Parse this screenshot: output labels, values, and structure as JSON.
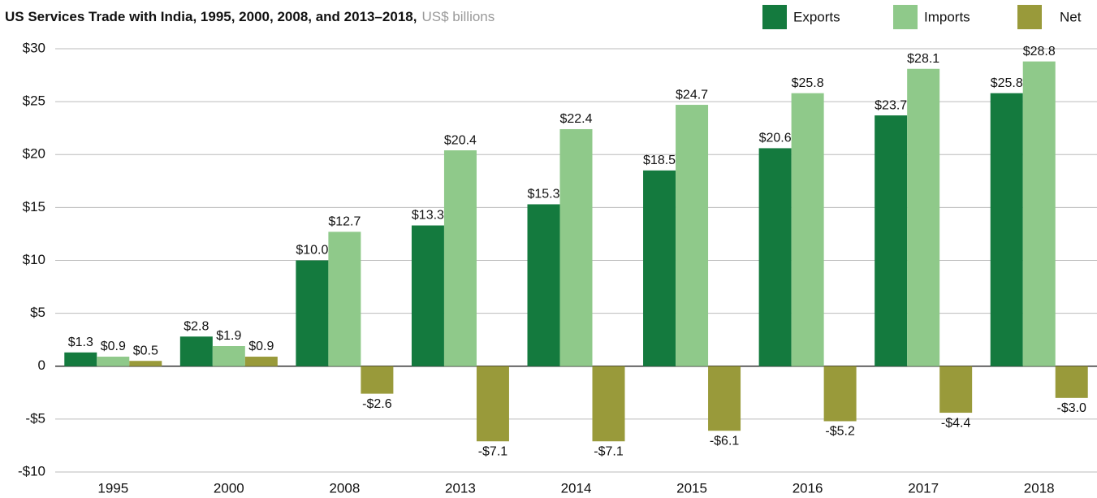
{
  "chart_data": {
    "type": "bar",
    "title": "US Services Trade with India, 1995, 2000, 2008, and 2013–2018,",
    "subtitle": "US$ billions",
    "categories": [
      "1995",
      "2000",
      "2008",
      "2013",
      "2014",
      "2015",
      "2016",
      "2017",
      "2018"
    ],
    "series": [
      {
        "name": "Exports",
        "color": "#147a3e",
        "values": [
          1.3,
          2.8,
          10.0,
          13.3,
          15.3,
          18.5,
          20.6,
          23.7,
          25.8
        ],
        "value_labels": [
          "$1.3",
          "$2.8",
          "$10.0",
          "$13.3",
          "$15.3",
          "$18.5",
          "$20.6",
          "$23.7",
          "$25.8"
        ]
      },
      {
        "name": "Imports",
        "color": "#8fc98a",
        "values": [
          0.9,
          1.9,
          12.7,
          20.4,
          22.4,
          24.7,
          25.8,
          28.1,
          28.8
        ],
        "value_labels": [
          "$0.9",
          "$1.9",
          "$12.7",
          "$20.4",
          "$22.4",
          "$24.7",
          "$25.8",
          "$28.1",
          "$28.8"
        ]
      },
      {
        "name": "Net",
        "color": "#999a3a",
        "values": [
          0.5,
          0.9,
          -2.6,
          -7.1,
          -7.1,
          -6.1,
          -5.2,
          -4.4,
          -3.0
        ],
        "value_labels": [
          "$0.5",
          "$0.9",
          "-$2.6",
          "-$7.1",
          "-$7.1",
          "-$6.1",
          "-$5.2",
          "-$4.4",
          "-$3.0"
        ]
      }
    ],
    "ylim": [
      -10,
      30
    ],
    "yticks": [
      {
        "value": -10,
        "label": "-$10"
      },
      {
        "value": -5,
        "label": "-$5"
      },
      0,
      {
        "value": 5,
        "label": "$5"
      },
      {
        "value": 10,
        "label": "$10"
      },
      {
        "value": 15,
        "label": "$15"
      },
      {
        "value": 20,
        "label": "$20"
      },
      {
        "value": 25,
        "label": "$25"
      },
      {
        "value": 30,
        "label": "$30"
      }
    ],
    "grid": true,
    "legend": "top-right"
  }
}
